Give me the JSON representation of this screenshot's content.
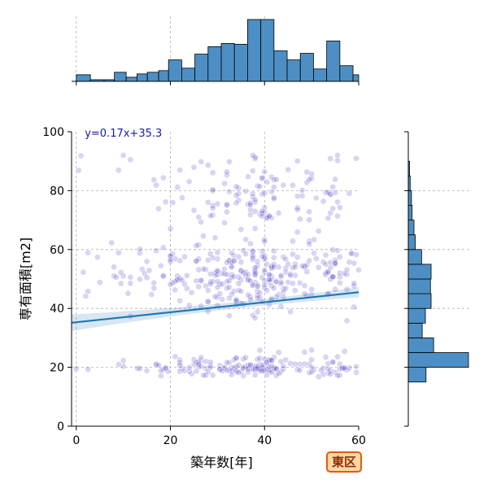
{
  "chart_data": {
    "type": "scatter",
    "xlabel": "築年数[年]",
    "ylabel": "専有面積[m2]",
    "xlim": [
      -1,
      60
    ],
    "ylim": [
      0,
      100
    ],
    "xticks": [
      0,
      20,
      40,
      60
    ],
    "yticks": [
      0,
      20,
      40,
      60,
      80,
      100
    ],
    "grid": true,
    "point_color": "#3a2fc0",
    "line_color": "#1f77b4",
    "hist_color": "#4d8fc4",
    "regression": {
      "label": "y=0.17x+35.3",
      "slope": 0.17,
      "intercept": 35.3
    },
    "top_histogram": {
      "bin_edges": [
        0,
        3,
        5.9,
        8.1,
        10.6,
        12.9,
        15.1,
        17.5,
        19.6,
        22.4,
        25.2,
        28,
        30.8,
        33.6,
        36.4,
        39.2,
        42,
        44.8,
        47.6,
        50.4,
        53.2,
        56,
        58.8,
        60
      ],
      "counts": [
        8,
        2,
        2,
        11,
        5,
        9,
        11,
        13,
        26,
        16,
        33,
        42,
        46,
        45,
        75,
        75,
        37,
        26,
        34,
        15,
        49,
        19,
        8
      ]
    },
    "right_histogram": {
      "bin_edges": [
        15,
        20,
        25,
        30,
        35,
        40,
        45,
        50,
        55,
        60,
        65,
        70,
        75,
        80,
        85,
        90
      ],
      "counts": [
        28,
        95,
        40,
        22,
        27,
        36,
        35,
        36,
        21,
        11,
        9,
        6,
        5,
        3,
        2
      ]
    }
  },
  "legend_badge": "東区"
}
